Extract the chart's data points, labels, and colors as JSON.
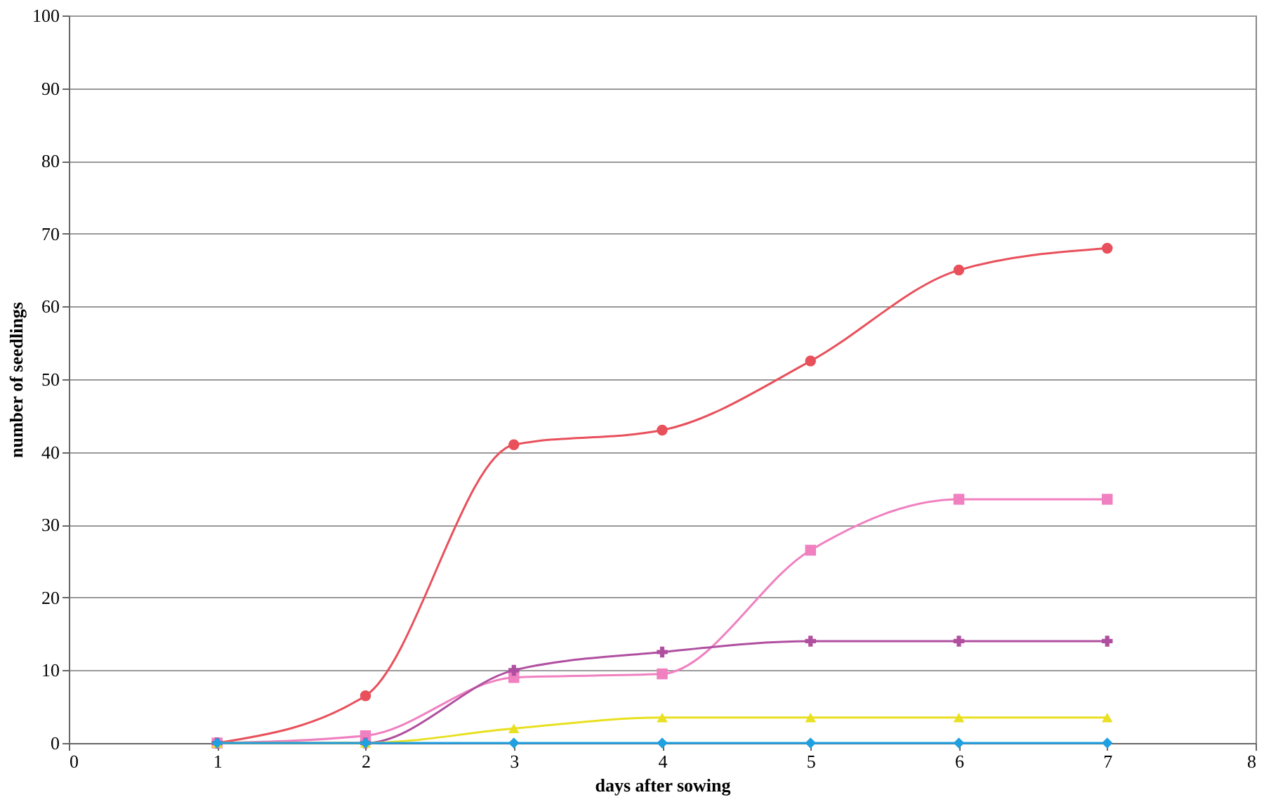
{
  "chart_data": {
    "type": "line",
    "xlabel": "days after sowing",
    "ylabel": "number of seedlings",
    "x": [
      1,
      2,
      3,
      4,
      5,
      6,
      7
    ],
    "xlim": [
      0,
      8
    ],
    "xticks": [
      0,
      1,
      2,
      3,
      4,
      5,
      6,
      7,
      8
    ],
    "ylim": [
      0,
      100
    ],
    "yticks": [
      0,
      10,
      20,
      30,
      40,
      50,
      60,
      70,
      80,
      90,
      100
    ],
    "grid": "y",
    "line_style": "solid",
    "series": [
      {
        "color": "#e8505b",
        "marker": "circle",
        "values": [
          0,
          6.5,
          41,
          43,
          52.5,
          65,
          68
        ]
      },
      {
        "color": "#f080c0",
        "marker": "square",
        "values": [
          0,
          1,
          9,
          9.5,
          26.5,
          33.5,
          33.5
        ]
      },
      {
        "color": "#b04fa0",
        "marker": "cross",
        "values": [
          0,
          0,
          10,
          12.5,
          14,
          14,
          14
        ]
      },
      {
        "color": "#e8e020",
        "marker": "triangle",
        "values": [
          0,
          0,
          2,
          3.5,
          3.5,
          3.5,
          3.5
        ]
      },
      {
        "color": "#20a0e0",
        "marker": "diamond",
        "values": [
          0,
          0,
          0,
          0,
          0,
          0,
          0
        ]
      }
    ]
  }
}
